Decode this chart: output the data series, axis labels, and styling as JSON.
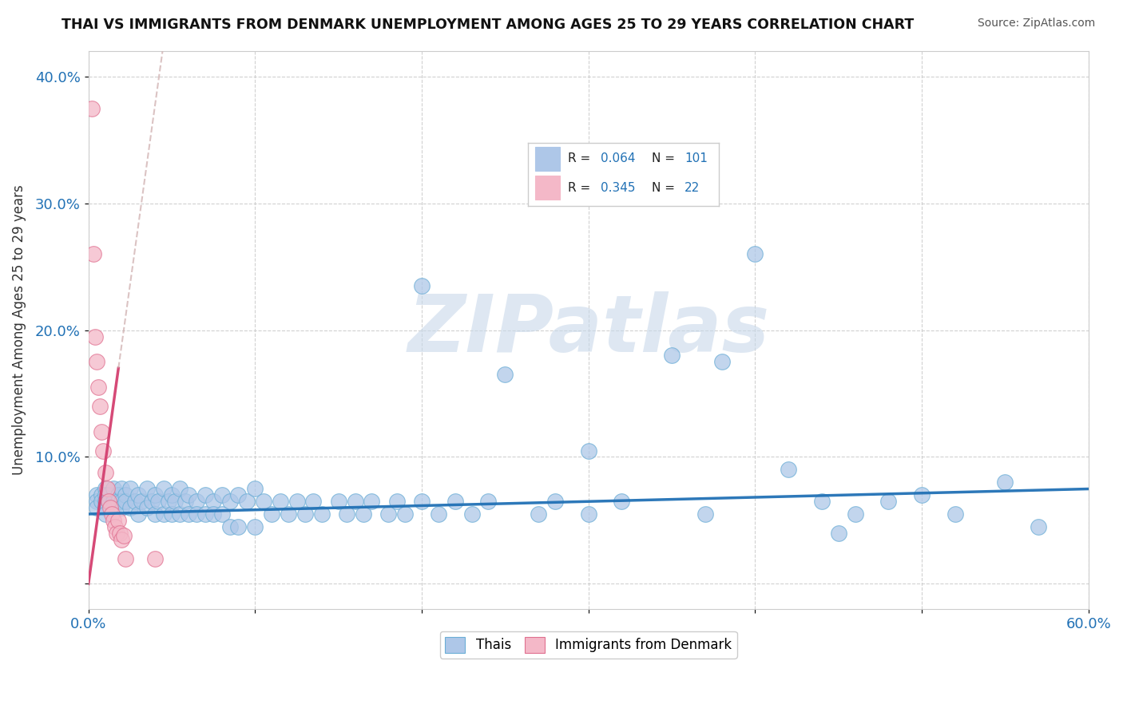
{
  "title": "THAI VS IMMIGRANTS FROM DENMARK UNEMPLOYMENT AMONG AGES 25 TO 29 YEARS CORRELATION CHART",
  "source": "Source: ZipAtlas.com",
  "ylabel": "Unemployment Among Ages 25 to 29 years",
  "xlim": [
    0.0,
    0.6
  ],
  "ylim": [
    -0.02,
    0.42
  ],
  "xtick_positions": [
    0.0,
    0.1,
    0.2,
    0.3,
    0.4,
    0.5,
    0.6
  ],
  "xticklabels": [
    "0.0%",
    "",
    "",
    "",
    "",
    "",
    "60.0%"
  ],
  "ytick_positions": [
    0.0,
    0.1,
    0.2,
    0.3,
    0.4
  ],
  "yticklabels": [
    "",
    "10.0%",
    "20.0%",
    "30.0%",
    "40.0%"
  ],
  "thai_color": "#aec7e8",
  "thai_edge_color": "#6baed6",
  "denmark_color": "#f4b8c8",
  "denmark_edge_color": "#e07090",
  "thai_line_color": "#2171b5",
  "denmark_line_color": "#d44070",
  "denmark_dashed_color": "#e8a0b0",
  "watermark_color": "#c8d8ea",
  "thai_scatter_x": [
    0.005,
    0.005,
    0.005,
    0.008,
    0.008,
    0.01,
    0.01,
    0.01,
    0.01,
    0.01,
    0.012,
    0.012,
    0.015,
    0.015,
    0.015,
    0.018,
    0.018,
    0.02,
    0.02,
    0.02,
    0.022,
    0.022,
    0.025,
    0.025,
    0.028,
    0.03,
    0.03,
    0.032,
    0.035,
    0.035,
    0.038,
    0.04,
    0.04,
    0.042,
    0.045,
    0.045,
    0.048,
    0.05,
    0.05,
    0.052,
    0.055,
    0.055,
    0.058,
    0.06,
    0.06,
    0.065,
    0.065,
    0.07,
    0.07,
    0.075,
    0.075,
    0.08,
    0.08,
    0.085,
    0.085,
    0.09,
    0.09,
    0.095,
    0.1,
    0.1,
    0.105,
    0.11,
    0.115,
    0.12,
    0.125,
    0.13,
    0.135,
    0.14,
    0.15,
    0.155,
    0.16,
    0.165,
    0.17,
    0.18,
    0.185,
    0.19,
    0.2,
    0.21,
    0.22,
    0.23,
    0.24,
    0.25,
    0.27,
    0.28,
    0.3,
    0.32,
    0.35,
    0.37,
    0.4,
    0.42,
    0.44,
    0.46,
    0.48,
    0.5,
    0.52,
    0.55,
    0.57,
    0.38,
    0.45,
    0.3,
    0.2
  ],
  "thai_scatter_y": [
    0.07,
    0.065,
    0.06,
    0.07,
    0.065,
    0.075,
    0.07,
    0.065,
    0.06,
    0.055,
    0.07,
    0.065,
    0.075,
    0.065,
    0.06,
    0.07,
    0.065,
    0.075,
    0.065,
    0.06,
    0.07,
    0.065,
    0.075,
    0.06,
    0.065,
    0.07,
    0.055,
    0.065,
    0.075,
    0.06,
    0.065,
    0.07,
    0.055,
    0.065,
    0.075,
    0.055,
    0.065,
    0.07,
    0.055,
    0.065,
    0.075,
    0.055,
    0.065,
    0.07,
    0.055,
    0.065,
    0.055,
    0.07,
    0.055,
    0.065,
    0.055,
    0.07,
    0.055,
    0.065,
    0.045,
    0.07,
    0.045,
    0.065,
    0.075,
    0.045,
    0.065,
    0.055,
    0.065,
    0.055,
    0.065,
    0.055,
    0.065,
    0.055,
    0.065,
    0.055,
    0.065,
    0.055,
    0.065,
    0.055,
    0.065,
    0.055,
    0.065,
    0.055,
    0.065,
    0.055,
    0.065,
    0.165,
    0.055,
    0.065,
    0.055,
    0.065,
    0.18,
    0.055,
    0.26,
    0.09,
    0.065,
    0.055,
    0.065,
    0.07,
    0.055,
    0.08,
    0.045,
    0.175,
    0.04,
    0.105,
    0.235
  ],
  "denmark_scatter_x": [
    0.002,
    0.003,
    0.004,
    0.005,
    0.006,
    0.007,
    0.008,
    0.009,
    0.01,
    0.011,
    0.012,
    0.013,
    0.014,
    0.015,
    0.016,
    0.017,
    0.018,
    0.019,
    0.02,
    0.021,
    0.022,
    0.04
  ],
  "denmark_scatter_y": [
    0.375,
    0.26,
    0.195,
    0.175,
    0.155,
    0.14,
    0.12,
    0.105,
    0.088,
    0.075,
    0.065,
    0.06,
    0.055,
    0.05,
    0.045,
    0.04,
    0.05,
    0.04,
    0.035,
    0.038,
    0.02,
    0.02
  ]
}
